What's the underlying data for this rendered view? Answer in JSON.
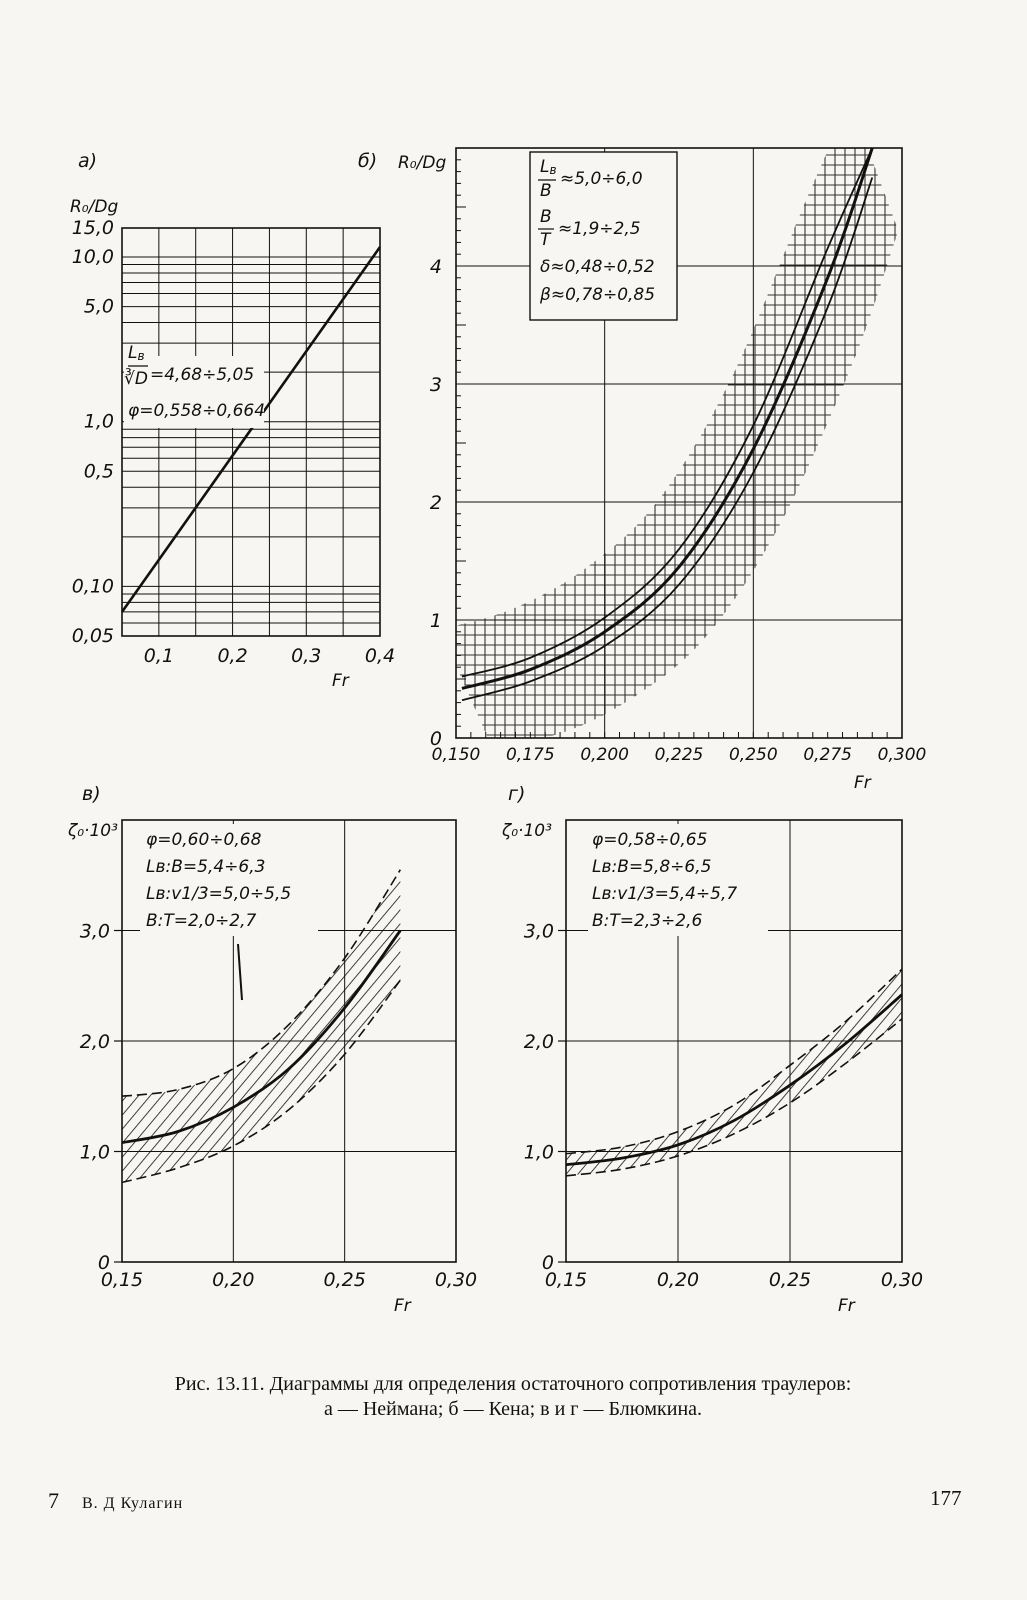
{
  "caption": {
    "line1": "Рис. 13.11. Диаграммы для определения остаточного сопротивления траулеров:",
    "line2": "а — Неймана; б — Кена; в и г — Блюмкина."
  },
  "footer": {
    "left_num": "7",
    "author": "В. Д Кулагин",
    "page_number": "177"
  },
  "chart_data": [
    {
      "panel": "а)",
      "type": "line",
      "ylabel": "R₀/Dg",
      "xlabel": "Fr",
      "y_scale": "log",
      "ylim": [
        0.05,
        15.0
      ],
      "xlim": [
        0.05,
        0.4
      ],
      "x_ticks": [
        "0,1",
        "0,2",
        "0,3",
        "0,4"
      ],
      "y_ticks": [
        "0,05",
        "0,10",
        "0,5",
        "1,0",
        "5,0",
        "10,0",
        "15,0"
      ],
      "annotations": [
        "=4,68÷5,05",
        "φ=0,558÷0,664"
      ],
      "series": [
        {
          "x": [
            0.05,
            0.4
          ],
          "y": [
            0.07,
            11.5
          ]
        }
      ]
    },
    {
      "panel": "б)",
      "type": "area",
      "ylabel": "R₀/Dg",
      "xlabel": "Fr",
      "xlim": [
        0.15,
        0.3
      ],
      "ylim": [
        0,
        5
      ],
      "x_ticks": [
        "0,150",
        "0,175",
        "0,200",
        "0,225",
        "0,250",
        "0,275",
        "0,300"
      ],
      "y_ticks": [
        "0",
        "1",
        "2",
        "3",
        "4"
      ],
      "annotations": [
        "≈5,0÷6,0",
        "≈1,9÷2,5",
        "δ≈0,48÷0,52",
        "β≈0,78÷0,85"
      ],
      "series": [
        {
          "x": [
            0.152,
            0.175,
            0.2,
            0.225,
            0.25,
            0.275,
            0.29
          ],
          "y": [
            0.42,
            0.58,
            0.9,
            1.45,
            2.45,
            3.9,
            5.0
          ],
          "band_low": [
            0.32,
            0.48,
            0.78,
            1.3,
            2.25,
            3.65,
            4.75
          ],
          "band_high": [
            0.52,
            0.68,
            1.02,
            1.6,
            2.65,
            4.15,
            5.0
          ]
        }
      ]
    },
    {
      "panel": "в)",
      "type": "area",
      "ylabel": "ζ₀·10³",
      "xlabel": "Fr",
      "xlim": [
        0.15,
        0.3
      ],
      "ylim": [
        0,
        4.0
      ],
      "x_ticks": [
        "0,15",
        "0,20",
        "0,25",
        "0,30"
      ],
      "y_ticks": [
        "0",
        "1,0",
        "2,0",
        "3,0"
      ],
      "annotations": [
        "φ=0,60÷0,68",
        "Lв:B=5,4÷6,3",
        "Lв:v1/3=5,0÷5,5",
        "B:T=2,0÷2,7"
      ],
      "series": [
        {
          "x": [
            0.15,
            0.175,
            0.2,
            0.225,
            0.25,
            0.275
          ],
          "y": [
            1.08,
            1.18,
            1.4,
            1.75,
            2.3,
            3.0
          ],
          "band_low": [
            0.72,
            0.85,
            1.05,
            1.38,
            1.88,
            2.55
          ],
          "band_high": [
            1.5,
            1.56,
            1.75,
            2.15,
            2.75,
            3.55
          ]
        }
      ]
    },
    {
      "panel": "г)",
      "type": "area",
      "ylabel": "ζ₀·10³",
      "xlabel": "Fr",
      "xlim": [
        0.15,
        0.3
      ],
      "ylim": [
        0,
        4.0
      ],
      "x_ticks": [
        "0,15",
        "0,20",
        "0,25",
        "0,30"
      ],
      "y_ticks": [
        "0",
        "1,0",
        "2,0",
        "3,0"
      ],
      "annotations": [
        "φ=0,58÷0,65",
        "Lв:B=5,8÷6,5",
        "Lв:v1/3=5,4÷5,7",
        "B:T=2,3÷2,6"
      ],
      "series": [
        {
          "x": [
            0.15,
            0.175,
            0.2,
            0.225,
            0.25,
            0.275,
            0.3
          ],
          "y": [
            0.88,
            0.94,
            1.06,
            1.28,
            1.6,
            1.98,
            2.42
          ],
          "band_low": [
            0.78,
            0.84,
            0.96,
            1.16,
            1.44,
            1.8,
            2.2
          ],
          "band_high": [
            0.98,
            1.04,
            1.18,
            1.42,
            1.78,
            2.18,
            2.65
          ]
        }
      ]
    }
  ]
}
